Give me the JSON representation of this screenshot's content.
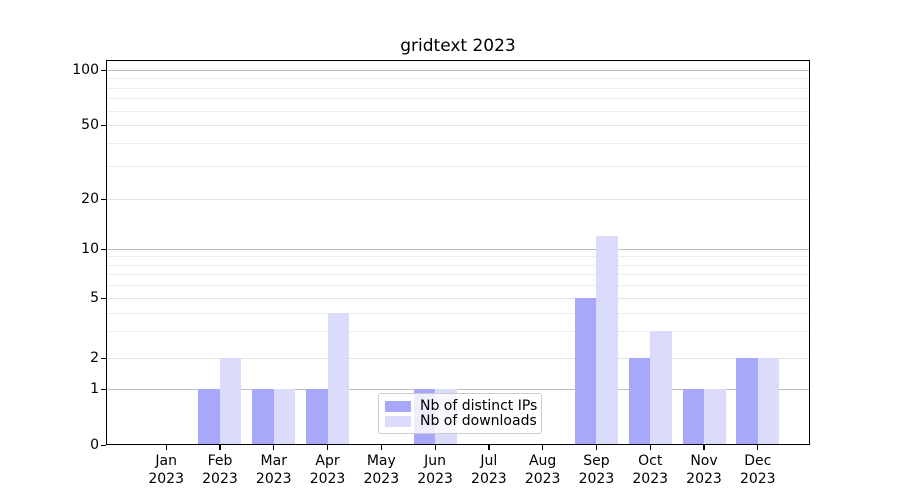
{
  "figure": {
    "title": "gridtext 2023"
  },
  "chart_data": {
    "type": "bar",
    "title": "gridtext 2023",
    "x_categories": [
      "Jan",
      "Feb",
      "Mar",
      "Apr",
      "May",
      "Jun",
      "Jul",
      "Aug",
      "Sep",
      "Oct",
      "Nov",
      "Dec"
    ],
    "x_year_label": "2023",
    "series": [
      {
        "name": "Nb of distinct IPs",
        "color": "#a8a8fa",
        "values": [
          0,
          1,
          1,
          1,
          0,
          1,
          0,
          0,
          5,
          2,
          1,
          2
        ]
      },
      {
        "name": "Nb of downloads",
        "color": "#dbdbfb",
        "values": [
          0,
          2,
          1,
          4,
          0,
          1,
          0,
          0,
          12,
          3,
          1,
          2
        ]
      }
    ],
    "y_ticks": [
      0,
      1,
      2,
      5,
      10,
      20,
      50,
      100
    ],
    "y_scale": "symlog",
    "ylim": [
      0,
      115
    ],
    "grid": true,
    "legend": {
      "position": "lower center",
      "items": [
        "Nb of distinct IPs",
        "Nb of downloads"
      ]
    }
  },
  "colors": {
    "grid_decade": "#bdbdbd",
    "grid_sub": "#e3e3e3",
    "grid_minor": "#ededed",
    "axis": "#000000",
    "legend_border": "#cccccc"
  }
}
